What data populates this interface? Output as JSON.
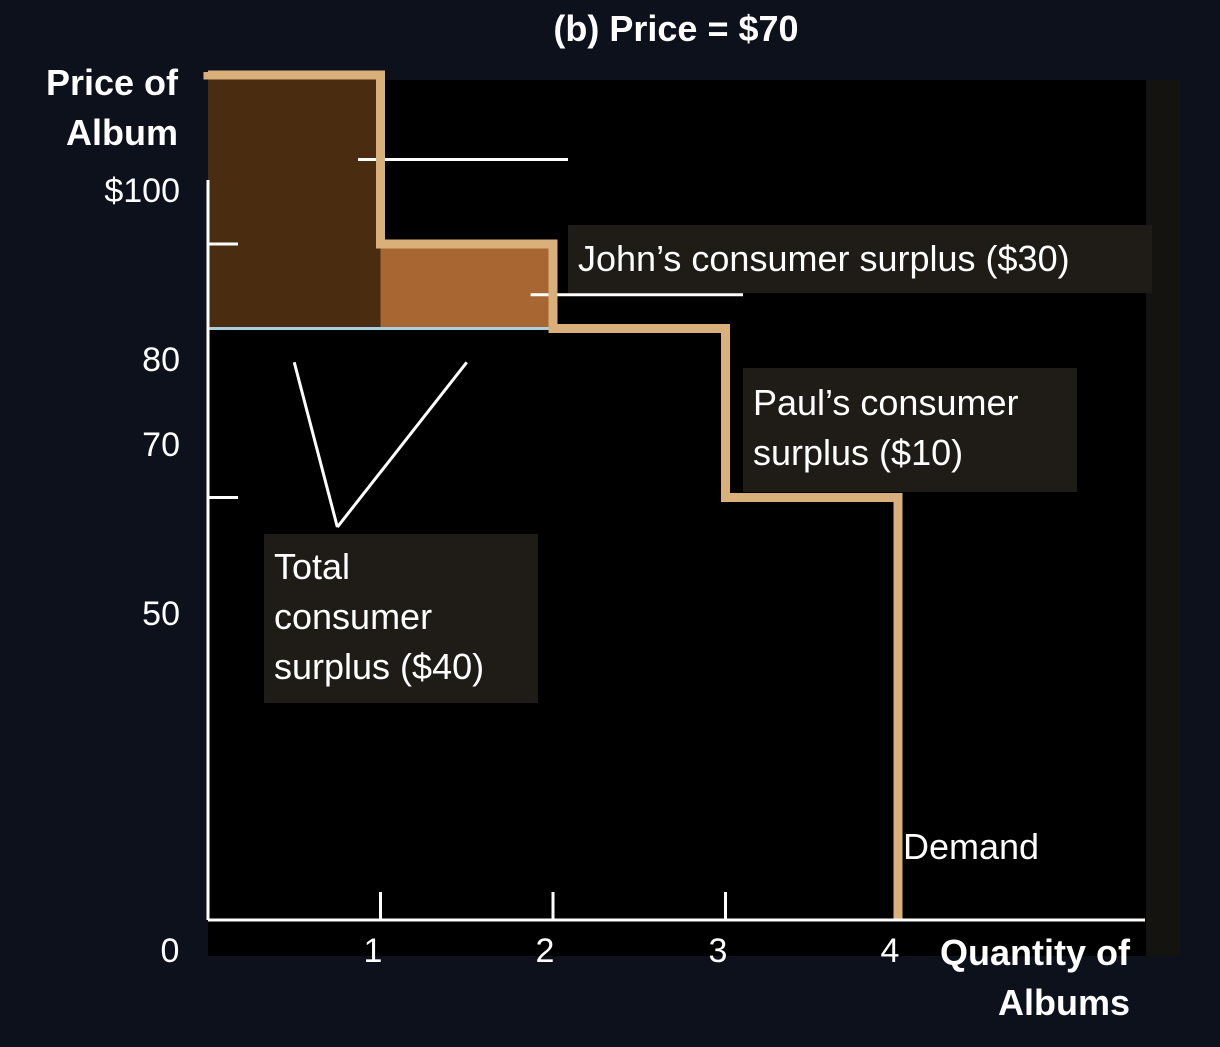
{
  "chart_data": {
    "type": "step",
    "title": "(b) Price = $70",
    "ylabel": [
      "Price of",
      "Album"
    ],
    "xlabel": [
      "Quantity of",
      "Albums"
    ],
    "origin_label": "0",
    "x_ticks": [
      "1",
      "2",
      "3",
      "4"
    ],
    "y_ticks": [
      {
        "value": 100,
        "label": "$100"
      },
      {
        "value": 80,
        "label": "80"
      },
      {
        "value": 70,
        "label": "70"
      },
      {
        "value": 50,
        "label": "50"
      }
    ],
    "xlim": [
      0,
      5.5
    ],
    "ylim": [
      0,
      115
    ],
    "demand": {
      "name": "Demand",
      "steps": [
        {
          "q_from": 0,
          "q_to": 1,
          "price": 100
        },
        {
          "q_from": 1,
          "q_to": 2,
          "price": 80
        },
        {
          "q_from": 2,
          "q_to": 3,
          "price": 70
        },
        {
          "q_from": 3,
          "q_to": 4,
          "price": 50
        }
      ]
    },
    "market_price": 70,
    "surplus_areas": [
      {
        "consumer": "John",
        "q_from": 0,
        "q_to": 1,
        "price_top": 100,
        "price_bottom": 70,
        "value": 30,
        "color": "#4a2c10"
      },
      {
        "consumer": "Paul",
        "q_from": 1,
        "q_to": 2,
        "price_top": 80,
        "price_bottom": 70,
        "value": 10,
        "color": "#a86632"
      }
    ],
    "annotations": {
      "john": "John’s consumer surplus ($30)",
      "paul": [
        "Paul’s consumer",
        "surplus ($10)"
      ],
      "total": [
        "Total",
        "consumer",
        "surplus ($40)"
      ]
    },
    "colors": {
      "background": "#0d111c",
      "plot_area": "#000000",
      "demand_line": "#d9b07a",
      "price_line": "#a9cfe0",
      "axis": "#ffffff",
      "callout_box": "#1f1c17"
    }
  }
}
